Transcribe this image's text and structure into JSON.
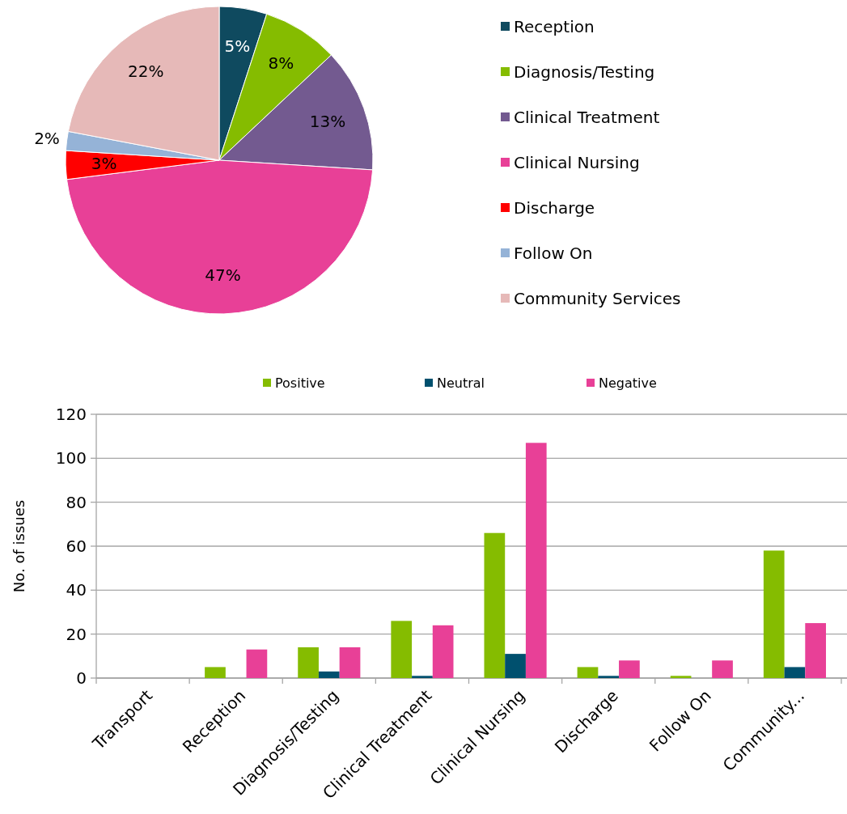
{
  "chart_data": [
    {
      "type": "pie",
      "categories": [
        "Reception",
        "Diagnosis/Testing",
        "Clinical Treatment",
        "Clinical Nursing",
        "Discharge",
        "Follow On",
        "Community Services"
      ],
      "values": [
        5,
        8,
        13,
        47,
        3,
        2,
        22
      ],
      "colors": [
        "#0f4a5f",
        "#85bc00",
        "#735a90",
        "#e84097",
        "#ff0000",
        "#95b3d7",
        "#e6b9b8"
      ],
      "value_labels": [
        "5%",
        "8%",
        "13%",
        "47%",
        "3%",
        "2%",
        "22%"
      ],
      "legend": "right"
    },
    {
      "type": "bar",
      "categories": [
        "Transport",
        "Reception",
        "Diagnosis/Testing",
        "Clinical Treatment",
        "Clinical Nursing",
        "Discharge",
        "Follow On",
        "Community..."
      ],
      "series": [
        {
          "name": "Positive",
          "color": "#85bc00",
          "values": [
            0,
            5,
            14,
            26,
            66,
            5,
            1,
            58
          ]
        },
        {
          "name": "Neutral",
          "color": "#00506e",
          "values": [
            0,
            0,
            3,
            1,
            11,
            1,
            0,
            5
          ]
        },
        {
          "name": "Negative",
          "color": "#e84097",
          "values": [
            0,
            13,
            14,
            24,
            107,
            8,
            8,
            25
          ]
        }
      ],
      "ylabel": "No. of issues",
      "ylim": [
        0,
        120
      ],
      "yticks": [
        0,
        20,
        40,
        60,
        80,
        100,
        120
      ],
      "grid": "y",
      "legend": "top"
    }
  ]
}
